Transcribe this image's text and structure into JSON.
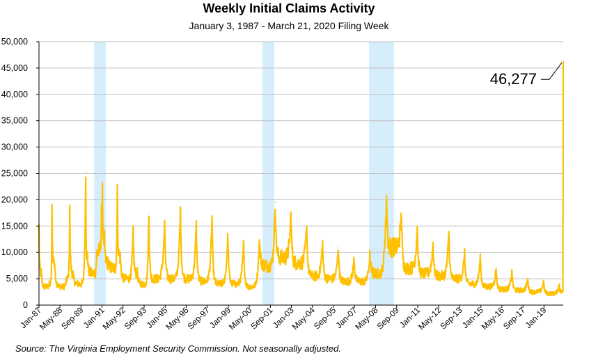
{
  "chart_data": {
    "type": "line",
    "title": "Weekly Initial Claims Activity",
    "subtitle": "January 3, 1987 - March 21, 2020 Filing Week",
    "source": "Source: The Virginia Employment Security Commission. Not seasonally adjusted.",
    "xlabel": "",
    "ylabel": "",
    "ylim": [
      0,
      50000
    ],
    "yticks": [
      0,
      5000,
      10000,
      15000,
      20000,
      25000,
      30000,
      35000,
      40000,
      45000,
      50000
    ],
    "ytick_labels": [
      "0",
      "5,000",
      "10,000",
      "15,000",
      "20,000",
      "25,000",
      "30,000",
      "35,000",
      "40,000",
      "45,000",
      "50,000"
    ],
    "xlim": [
      "1987-01-03",
      "2020-03-21"
    ],
    "xticks": [
      {
        "label": "Jan-87",
        "date": "1987-01-01"
      },
      {
        "label": "May-88",
        "date": "1988-05-01"
      },
      {
        "label": "Sep-89",
        "date": "1989-09-01"
      },
      {
        "label": "Jan-91",
        "date": "1991-01-01"
      },
      {
        "label": "May-92",
        "date": "1992-05-01"
      },
      {
        "label": "Sep-93",
        "date": "1993-09-01"
      },
      {
        "label": "Jan-95",
        "date": "1995-01-01"
      },
      {
        "label": "May-96",
        "date": "1996-05-01"
      },
      {
        "label": "Sep-97",
        "date": "1997-09-01"
      },
      {
        "label": "Jan-99",
        "date": "1999-01-01"
      },
      {
        "label": "May-00",
        "date": "2000-05-01"
      },
      {
        "label": "Sep-01",
        "date": "2001-09-01"
      },
      {
        "label": "Jan-03",
        "date": "2003-01-01"
      },
      {
        "label": "May-04",
        "date": "2004-05-01"
      },
      {
        "label": "Sep-05",
        "date": "2005-09-01"
      },
      {
        "label": "Jan-07",
        "date": "2007-01-01"
      },
      {
        "label": "May-08",
        "date": "2008-05-01"
      },
      {
        "label": "Sep-09",
        "date": "2009-09-01"
      },
      {
        "label": "Jan-11",
        "date": "2011-01-01"
      },
      {
        "label": "May-12",
        "date": "2012-05-01"
      },
      {
        "label": "Sep-13",
        "date": "2013-09-01"
      },
      {
        "label": "Jan-15",
        "date": "2015-01-01"
      },
      {
        "label": "May-16",
        "date": "2016-05-01"
      },
      {
        "label": "Sep-17",
        "date": "2017-09-01"
      },
      {
        "label": "Jan-19",
        "date": "2019-01-01"
      }
    ],
    "grid": "horizontal",
    "recession_bands": [
      {
        "start": "1990-07-01",
        "end": "1991-03-31"
      },
      {
        "start": "2001-03-01",
        "end": "2001-11-30"
      },
      {
        "start": "2007-12-01",
        "end": "2009-06-30"
      }
    ],
    "annotation": {
      "text": "46,277",
      "date": "2020-03-21",
      "value": 46277
    },
    "series": [
      {
        "values_approx": [
          {
            "date": "1987-01-03",
            "value": 15000
          },
          {
            "date": "1987-03-01",
            "value": 6000
          },
          {
            "date": "1987-06-01",
            "value": 3500
          },
          {
            "date": "1987-09-01",
            "value": 4000
          },
          {
            "date": "1987-11-01",
            "value": 18500
          },
          {
            "date": "1988-01-01",
            "value": 8000
          },
          {
            "date": "1988-06-01",
            "value": 3500
          },
          {
            "date": "1988-10-01",
            "value": 5000
          },
          {
            "date": "1988-12-15",
            "value": 19000
          },
          {
            "date": "1989-03-01",
            "value": 6000
          },
          {
            "date": "1989-08-01",
            "value": 4000
          },
          {
            "date": "1989-12-20",
            "value": 25300
          },
          {
            "date": "1990-02-01",
            "value": 9000
          },
          {
            "date": "1990-06-01",
            "value": 6000
          },
          {
            "date": "1990-09-01",
            "value": 10000
          },
          {
            "date": "1990-12-20",
            "value": 16500
          },
          {
            "date": "1991-01-10",
            "value": 23500
          },
          {
            "date": "1991-03-01",
            "value": 12000
          },
          {
            "date": "1991-06-01",
            "value": 8000
          },
          {
            "date": "1991-10-01",
            "value": 7000
          },
          {
            "date": "1991-12-20",
            "value": 22500
          },
          {
            "date": "1992-03-01",
            "value": 9000
          },
          {
            "date": "1992-07-01",
            "value": 5000
          },
          {
            "date": "1992-12-20",
            "value": 14000
          },
          {
            "date": "1993-04-01",
            "value": 6000
          },
          {
            "date": "1993-08-01",
            "value": 4000
          },
          {
            "date": "1993-12-20",
            "value": 17500
          },
          {
            "date": "1994-04-01",
            "value": 5000
          },
          {
            "date": "1994-12-20",
            "value": 15500
          },
          {
            "date": "1995-05-01",
            "value": 5000
          },
          {
            "date": "1995-12-20",
            "value": 18500
          },
          {
            "date": "1996-05-01",
            "value": 5000
          },
          {
            "date": "1996-12-20",
            "value": 15500
          },
          {
            "date": "1997-05-01",
            "value": 4500
          },
          {
            "date": "1997-12-20",
            "value": 17000
          },
          {
            "date": "1998-05-01",
            "value": 4000
          },
          {
            "date": "1998-12-20",
            "value": 13500
          },
          {
            "date": "1999-05-01",
            "value": 4000
          },
          {
            "date": "1999-12-20",
            "value": 12000
          },
          {
            "date": "2000-05-01",
            "value": 3500
          },
          {
            "date": "2000-12-20",
            "value": 12500
          },
          {
            "date": "2001-06-01",
            "value": 7500
          },
          {
            "date": "2001-12-20",
            "value": 19500
          },
          {
            "date": "2002-05-01",
            "value": 9000
          },
          {
            "date": "2002-12-20",
            "value": 17500
          },
          {
            "date": "2003-05-01",
            "value": 8000
          },
          {
            "date": "2003-12-20",
            "value": 15000
          },
          {
            "date": "2004-05-01",
            "value": 5500
          },
          {
            "date": "2004-12-20",
            "value": 12000
          },
          {
            "date": "2005-05-01",
            "value": 5000
          },
          {
            "date": "2005-12-20",
            "value": 11000
          },
          {
            "date": "2006-05-01",
            "value": 4500
          },
          {
            "date": "2006-12-20",
            "value": 9000
          },
          {
            "date": "2007-05-01",
            "value": 4500
          },
          {
            "date": "2007-12-20",
            "value": 9500
          },
          {
            "date": "2008-05-01",
            "value": 6000
          },
          {
            "date": "2008-12-20",
            "value": 16000
          },
          {
            "date": "2009-01-10",
            "value": 22000
          },
          {
            "date": "2009-05-01",
            "value": 11000
          },
          {
            "date": "2009-12-20",
            "value": 17500
          },
          {
            "date": "2010-05-01",
            "value": 7000
          },
          {
            "date": "2010-12-20",
            "value": 15000
          },
          {
            "date": "2011-05-01",
            "value": 6000
          },
          {
            "date": "2011-12-20",
            "value": 12000
          },
          {
            "date": "2012-05-01",
            "value": 5500
          },
          {
            "date": "2012-12-20",
            "value": 14000
          },
          {
            "date": "2013-05-01",
            "value": 5000
          },
          {
            "date": "2013-12-20",
            "value": 10000
          },
          {
            "date": "2014-05-01",
            "value": 4000
          },
          {
            "date": "2014-12-20",
            "value": 9300
          },
          {
            "date": "2015-05-01",
            "value": 3500
          },
          {
            "date": "2015-12-20",
            "value": 7000
          },
          {
            "date": "2016-05-01",
            "value": 3000
          },
          {
            "date": "2016-12-20",
            "value": 6500
          },
          {
            "date": "2017-05-01",
            "value": 2800
          },
          {
            "date": "2017-12-20",
            "value": 5000
          },
          {
            "date": "2018-05-01",
            "value": 2500
          },
          {
            "date": "2018-12-20",
            "value": 4500
          },
          {
            "date": "2019-05-01",
            "value": 2200
          },
          {
            "date": "2019-12-20",
            "value": 4000
          },
          {
            "date": "2020-03-07",
            "value": 2500
          },
          {
            "date": "2020-03-14",
            "value": 2700
          },
          {
            "date": "2020-03-21",
            "value": 46277
          }
        ],
        "color": "#ffc000"
      }
    ],
    "colors": {
      "line": "#ffc000",
      "recession_band": "#d6eefb",
      "grid": "#bfbfbf",
      "axis": "#000000"
    }
  }
}
